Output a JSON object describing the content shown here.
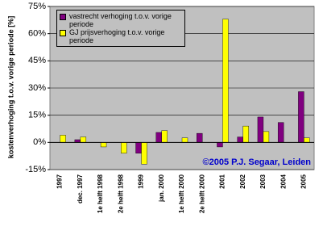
{
  "chart_data": {
    "type": "bar",
    "y_label": "kostenverhoging t.o.v. vorige periode [%]",
    "annotation": "©2005 P.J. Segaar, Leiden",
    "categories": [
      "1997",
      "dec. 1997",
      "1e helft 1998",
      "2e helft 1998",
      "1999",
      "jan. 2000",
      "1e helft 2000",
      "2e helft 2000",
      "2001",
      "2002",
      "2003",
      "2004",
      "2005"
    ],
    "series": [
      {
        "name": "vastrecht verhoging t.o.v. vorige periode",
        "color": "#800080",
        "values": [
          0,
          1.5,
          0,
          0,
          -6,
          5.5,
          0,
          5,
          -2.5,
          3,
          14,
          11,
          28
        ]
      },
      {
        "name": "GJ prijsverhoging t.o.v. vorige periode",
        "color": "#ffff00",
        "values": [
          4,
          3,
          -2.5,
          -6,
          -12,
          6.5,
          2.5,
          0,
          68,
          9,
          6,
          0,
          2.5
        ]
      }
    ],
    "ylim": [
      -15,
      75
    ],
    "yticks": [
      {
        "value": -15,
        "label": "-15%"
      },
      {
        "value": 0,
        "label": "0%"
      },
      {
        "value": 15,
        "label": "15%"
      },
      {
        "value": 30,
        "label": "30%"
      },
      {
        "value": 45,
        "label": "45%"
      },
      {
        "value": 60,
        "label": "60%"
      },
      {
        "value": 75,
        "label": "75%"
      }
    ],
    "grid": true,
    "legend": "upper left"
  }
}
